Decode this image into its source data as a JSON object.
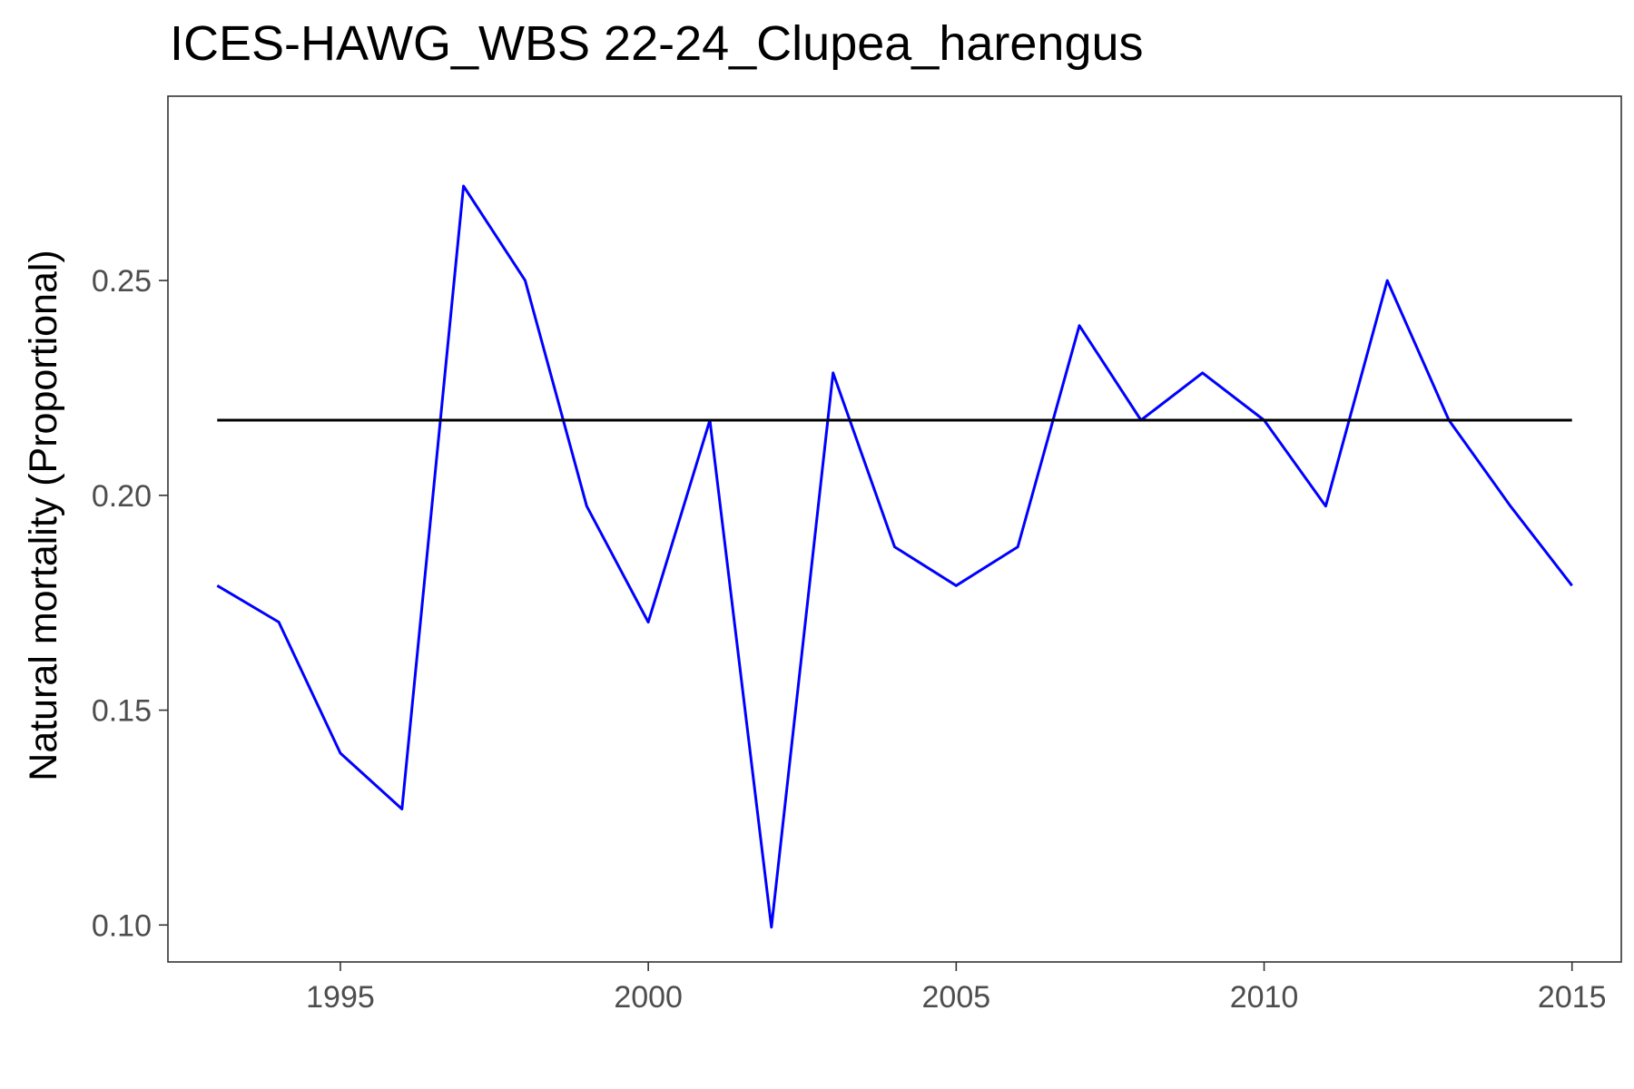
{
  "chart_data": {
    "type": "line",
    "title": "ICES-HAWG_WBS 22-24_Clupea_harengus",
    "xlabel": "",
    "ylabel": "Natural mortality (Proportional)",
    "xlim": [
      1992.2,
      2015.8
    ],
    "ylim": [
      0.0914,
      0.2929
    ],
    "x_ticks": [
      {
        "value": 1995,
        "label": "1995"
      },
      {
        "value": 2000,
        "label": "2000"
      },
      {
        "value": 2005,
        "label": "2005"
      },
      {
        "value": 2010,
        "label": "2010"
      },
      {
        "value": 2015,
        "label": "2015"
      }
    ],
    "y_ticks": [
      {
        "value": 0.1,
        "label": "0.10"
      },
      {
        "value": 0.15,
        "label": "0.15"
      },
      {
        "value": 0.2,
        "label": "0.20"
      },
      {
        "value": 0.25,
        "label": "0.25"
      }
    ],
    "grid": false,
    "series": [
      {
        "color": "#0000ff",
        "x": [
          1993,
          1994,
          1995,
          1996,
          1997,
          1998,
          1999,
          2000,
          2001,
          2002,
          2003,
          2004,
          2005,
          2006,
          2007,
          2008,
          2009,
          2010,
          2011,
          2012,
          2013,
          2014,
          2015
        ],
        "values": [
          0.179,
          0.1705,
          0.14,
          0.127,
          0.272,
          0.25,
          0.1975,
          0.1705,
          0.2175,
          0.0995,
          0.2285,
          0.188,
          0.179,
          0.188,
          0.2395,
          0.2175,
          0.2285,
          0.2175,
          0.1975,
          0.25,
          0.2175,
          0.1975,
          0.179
        ]
      },
      {
        "color": "#000000",
        "x": [
          1993,
          2015
        ],
        "values": [
          0.2175,
          0.2175
        ]
      }
    ]
  }
}
